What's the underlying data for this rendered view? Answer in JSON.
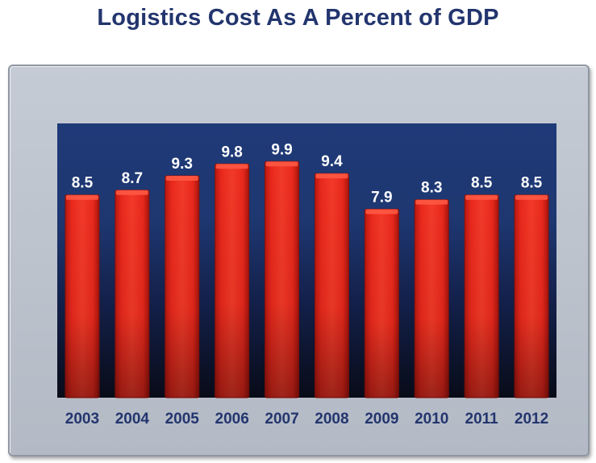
{
  "title": "Logistics Cost As A Percent of GDP",
  "colors": {
    "title": "#23356e",
    "bar": "#e8281c",
    "bar_highlight": "#ff5a45",
    "plot_top": "#1f3a78",
    "plot_bottom": "#080b18",
    "frame": "#bfc5ce"
  },
  "chart_data": {
    "type": "bar",
    "title": "Logistics Cost As A Percent of GDP",
    "categories": [
      "2003",
      "2004",
      "2005",
      "2006",
      "2007",
      "2008",
      "2009",
      "2010",
      "2011",
      "2012"
    ],
    "values": [
      8.5,
      8.7,
      9.3,
      9.8,
      9.9,
      9.4,
      7.9,
      8.3,
      8.5,
      8.5
    ],
    "data_labels": [
      "8.5",
      "8.7",
      "9.3",
      "9.8",
      "9.9",
      "9.4",
      "7.9",
      "8.3",
      "8.5",
      "8.5"
    ],
    "xlabel": "",
    "ylabel": "",
    "ylim": [
      0,
      11.5
    ],
    "grid": false,
    "legend": "none"
  }
}
